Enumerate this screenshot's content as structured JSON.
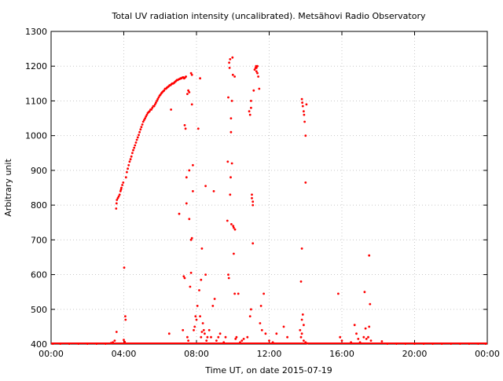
{
  "chart_data": {
    "type": "scatter",
    "title": "Total UV radiation intensity (uncalibrated). Metsähovi Radio Observatory",
    "xlabel": "Time UT, on date 2015-07-19",
    "ylabel": "Arbitrary unit",
    "xlim": [
      0,
      24
    ],
    "ylim": [
      400,
      1300
    ],
    "x_ticks": [
      0,
      4,
      8,
      12,
      16,
      20,
      24
    ],
    "x_tick_labels": [
      "00:00",
      "04:00",
      "08:00",
      "12:00",
      "16:00",
      "20:00",
      "00:00"
    ],
    "y_ticks": [
      400,
      500,
      600,
      700,
      800,
      900,
      1000,
      1100,
      1200,
      1300
    ],
    "y_tick_labels": [
      "400",
      "500",
      "600",
      "700",
      "800",
      "900",
      "1000",
      "1100",
      "1200",
      "1300"
    ],
    "grid": true,
    "series": [
      {
        "color": "#ff0000",
        "marker": "dot",
        "points": [
          [
            0.1,
            401
          ],
          [
            0.5,
            401
          ],
          [
            1.0,
            401
          ],
          [
            1.5,
            401
          ],
          [
            2.0,
            401
          ],
          [
            2.5,
            401
          ],
          [
            3.0,
            401
          ],
          [
            3.3,
            403
          ],
          [
            3.4,
            405
          ],
          [
            3.5,
            410
          ],
          [
            3.6,
            435
          ],
          [
            3.58,
            790
          ],
          [
            3.6,
            805
          ],
          [
            3.62,
            815
          ],
          [
            3.67,
            820
          ],
          [
            3.72,
            825
          ],
          [
            3.77,
            830
          ],
          [
            3.82,
            840
          ],
          [
            3.87,
            850
          ],
          [
            3.92,
            858
          ],
          [
            3.97,
            865
          ],
          [
            3.85,
            845
          ],
          [
            4.02,
            620
          ],
          [
            4.08,
            480
          ],
          [
            4.1,
            470
          ],
          [
            4.0,
            412
          ],
          [
            4.05,
            406
          ],
          [
            4.12,
            880
          ],
          [
            4.17,
            895
          ],
          [
            4.22,
            905
          ],
          [
            4.27,
            915
          ],
          [
            4.32,
            925
          ],
          [
            4.37,
            932
          ],
          [
            4.42,
            940
          ],
          [
            4.47,
            950
          ],
          [
            4.52,
            958
          ],
          [
            4.57,
            965
          ],
          [
            4.62,
            972
          ],
          [
            4.67,
            980
          ],
          [
            4.72,
            988
          ],
          [
            4.77,
            995
          ],
          [
            4.82,
            1002
          ],
          [
            4.87,
            1010
          ],
          [
            4.92,
            1018
          ],
          [
            4.97,
            1025
          ],
          [
            5.02,
            1032
          ],
          [
            5.07,
            1040
          ],
          [
            5.12,
            1045
          ],
          [
            5.17,
            1050
          ],
          [
            5.22,
            1055
          ],
          [
            5.27,
            1060
          ],
          [
            5.32,
            1065
          ],
          [
            5.37,
            1068
          ],
          [
            5.42,
            1070
          ],
          [
            5.47,
            1075
          ],
          [
            5.52,
            1075
          ],
          [
            5.57,
            1080
          ],
          [
            5.62,
            1085
          ],
          [
            5.67,
            1085
          ],
          [
            5.72,
            1090
          ],
          [
            5.77,
            1095
          ],
          [
            5.82,
            1100
          ],
          [
            5.87,
            1105
          ],
          [
            5.92,
            1110
          ],
          [
            5.97,
            1115
          ],
          [
            6.02,
            1118
          ],
          [
            6.07,
            1122
          ],
          [
            6.12,
            1125
          ],
          [
            6.17,
            1128
          ],
          [
            6.22,
            1130
          ],
          [
            6.27,
            1135
          ],
          [
            6.32,
            1135
          ],
          [
            6.37,
            1138
          ],
          [
            6.42,
            1140
          ],
          [
            6.47,
            1142
          ],
          [
            6.52,
            1145
          ],
          [
            6.57,
            1145
          ],
          [
            6.62,
            1148
          ],
          [
            6.67,
            1150
          ],
          [
            6.72,
            1150
          ],
          [
            6.77,
            1152
          ],
          [
            6.82,
            1155
          ],
          [
            6.87,
            1157
          ],
          [
            6.92,
            1160
          ],
          [
            6.97,
            1160
          ],
          [
            7.02,
            1162
          ],
          [
            7.07,
            1163
          ],
          [
            7.12,
            1165
          ],
          [
            7.17,
            1165
          ],
          [
            7.22,
            1167
          ],
          [
            7.27,
            1168
          ],
          [
            7.32,
            1165
          ],
          [
            7.37,
            1167
          ],
          [
            7.42,
            1170
          ],
          [
            7.5,
            1120
          ],
          [
            7.55,
            1130
          ],
          [
            7.6,
            1125
          ],
          [
            7.7,
            1180
          ],
          [
            7.75,
            1175
          ],
          [
            6.6,
            1075
          ],
          [
            6.5,
            430
          ],
          [
            7.05,
            775
          ],
          [
            7.25,
            440
          ],
          [
            7.3,
            595
          ],
          [
            7.35,
            590
          ],
          [
            7.35,
            1030
          ],
          [
            7.4,
            1020
          ],
          [
            7.45,
            880
          ],
          [
            7.45,
            805
          ],
          [
            7.5,
            420
          ],
          [
            7.55,
            410
          ],
          [
            7.6,
            760
          ],
          [
            7.6,
            900
          ],
          [
            7.65,
            565
          ],
          [
            7.7,
            700
          ],
          [
            7.7,
            605
          ],
          [
            7.75,
            1090
          ],
          [
            7.75,
            705
          ],
          [
            7.8,
            915
          ],
          [
            7.8,
            840
          ],
          [
            7.85,
            440
          ],
          [
            7.9,
            450
          ],
          [
            7.95,
            480
          ],
          [
            8.0,
            470
          ],
          [
            8.05,
            510
          ],
          [
            8.1,
            1020
          ],
          [
            8.15,
            555
          ],
          [
            8.2,
            1165
          ],
          [
            8.2,
            480
          ],
          [
            8.25,
            420
          ],
          [
            8.25,
            585
          ],
          [
            8.3,
            675
          ],
          [
            8.3,
            435
          ],
          [
            8.35,
            460
          ],
          [
            8.4,
            440
          ],
          [
            8.45,
            430
          ],
          [
            8.5,
            600
          ],
          [
            8.5,
            855
          ],
          [
            8.55,
            410
          ],
          [
            8.6,
            420
          ],
          [
            8.7,
            440
          ],
          [
            8.8,
            420
          ],
          [
            8.9,
            510
          ],
          [
            8.95,
            840
          ],
          [
            9.0,
            530
          ],
          [
            9.1,
            410
          ],
          [
            9.2,
            420
          ],
          [
            9.3,
            430
          ],
          [
            9.5,
            405
          ],
          [
            9.6,
            420
          ],
          [
            9.7,
            755
          ],
          [
            9.72,
            925
          ],
          [
            9.75,
            1110
          ],
          [
            9.75,
            600
          ],
          [
            9.78,
            590
          ],
          [
            9.8,
            1210
          ],
          [
            9.82,
            1195
          ],
          [
            9.85,
            1220
          ],
          [
            9.85,
            830
          ],
          [
            9.88,
            880
          ],
          [
            9.9,
            1050
          ],
          [
            9.9,
            1010
          ],
          [
            9.92,
            745
          ],
          [
            9.95,
            920
          ],
          [
            9.95,
            1100
          ],
          [
            9.98,
            1225
          ],
          [
            10.0,
            1175
          ],
          [
            10.02,
            740
          ],
          [
            10.05,
            660
          ],
          [
            10.05,
            735
          ],
          [
            10.1,
            545
          ],
          [
            10.1,
            1170
          ],
          [
            10.12,
            730
          ],
          [
            10.15,
            415
          ],
          [
            10.2,
            420
          ],
          [
            10.3,
            545
          ],
          [
            10.4,
            405
          ],
          [
            10.5,
            410
          ],
          [
            10.6,
            415
          ],
          [
            10.8,
            420
          ],
          [
            10.9,
            1070
          ],
          [
            10.95,
            1060
          ],
          [
            11.0,
            1080
          ],
          [
            11.0,
            1100
          ],
          [
            11.05,
            820
          ],
          [
            11.05,
            830
          ],
          [
            11.1,
            810
          ],
          [
            11.1,
            800
          ],
          [
            11.1,
            690
          ],
          [
            11.0,
            500
          ],
          [
            10.95,
            480
          ],
          [
            11.15,
            1130
          ],
          [
            11.2,
            1190
          ],
          [
            11.25,
            1195
          ],
          [
            11.28,
            1200
          ],
          [
            11.3,
            1185
          ],
          [
            11.35,
            1180
          ],
          [
            11.4,
            1170
          ],
          [
            11.3,
            1195
          ],
          [
            11.35,
            1200
          ],
          [
            11.45,
            1135
          ],
          [
            11.5,
            460
          ],
          [
            11.55,
            510
          ],
          [
            11.6,
            440
          ],
          [
            11.7,
            545
          ],
          [
            11.8,
            430
          ],
          [
            12.0,
            410
          ],
          [
            12.2,
            405
          ],
          [
            12.4,
            430
          ],
          [
            12.8,
            450
          ],
          [
            13.0,
            420
          ],
          [
            13.8,
            1105
          ],
          [
            13.82,
            1095
          ],
          [
            13.85,
            1085
          ],
          [
            13.9,
            1070
          ],
          [
            13.92,
            1060
          ],
          [
            13.95,
            1040
          ],
          [
            14.0,
            1000
          ],
          [
            14.05,
            1090
          ],
          [
            14.0,
            865
          ],
          [
            13.8,
            675
          ],
          [
            13.75,
            580
          ],
          [
            13.8,
            470
          ],
          [
            13.85,
            485
          ],
          [
            13.9,
            455
          ],
          [
            13.7,
            440
          ],
          [
            13.75,
            420
          ],
          [
            13.8,
            430
          ],
          [
            13.9,
            410
          ],
          [
            14.0,
            405
          ],
          [
            14.1,
            402
          ],
          [
            15.8,
            545
          ],
          [
            15.9,
            420
          ],
          [
            16.0,
            410
          ],
          [
            16.5,
            405
          ],
          [
            16.7,
            455
          ],
          [
            16.8,
            430
          ],
          [
            16.9,
            415
          ],
          [
            17.0,
            405
          ],
          [
            17.2,
            420
          ],
          [
            17.25,
            550
          ],
          [
            17.3,
            445
          ],
          [
            17.35,
            415
          ],
          [
            17.45,
            420
          ],
          [
            17.5,
            655
          ],
          [
            17.55,
            515
          ],
          [
            17.5,
            450
          ],
          [
            17.6,
            410
          ],
          [
            18.2,
            408
          ],
          [
            18.5,
            401
          ],
          [
            19.0,
            401
          ],
          [
            19.5,
            401
          ],
          [
            20.0,
            401
          ],
          [
            20.5,
            401
          ],
          [
            21.0,
            401
          ],
          [
            21.5,
            401
          ],
          [
            22.0,
            401
          ],
          [
            22.5,
            401
          ],
          [
            23.0,
            401
          ],
          [
            23.5,
            401
          ],
          [
            23.9,
            401
          ]
        ]
      }
    ]
  }
}
